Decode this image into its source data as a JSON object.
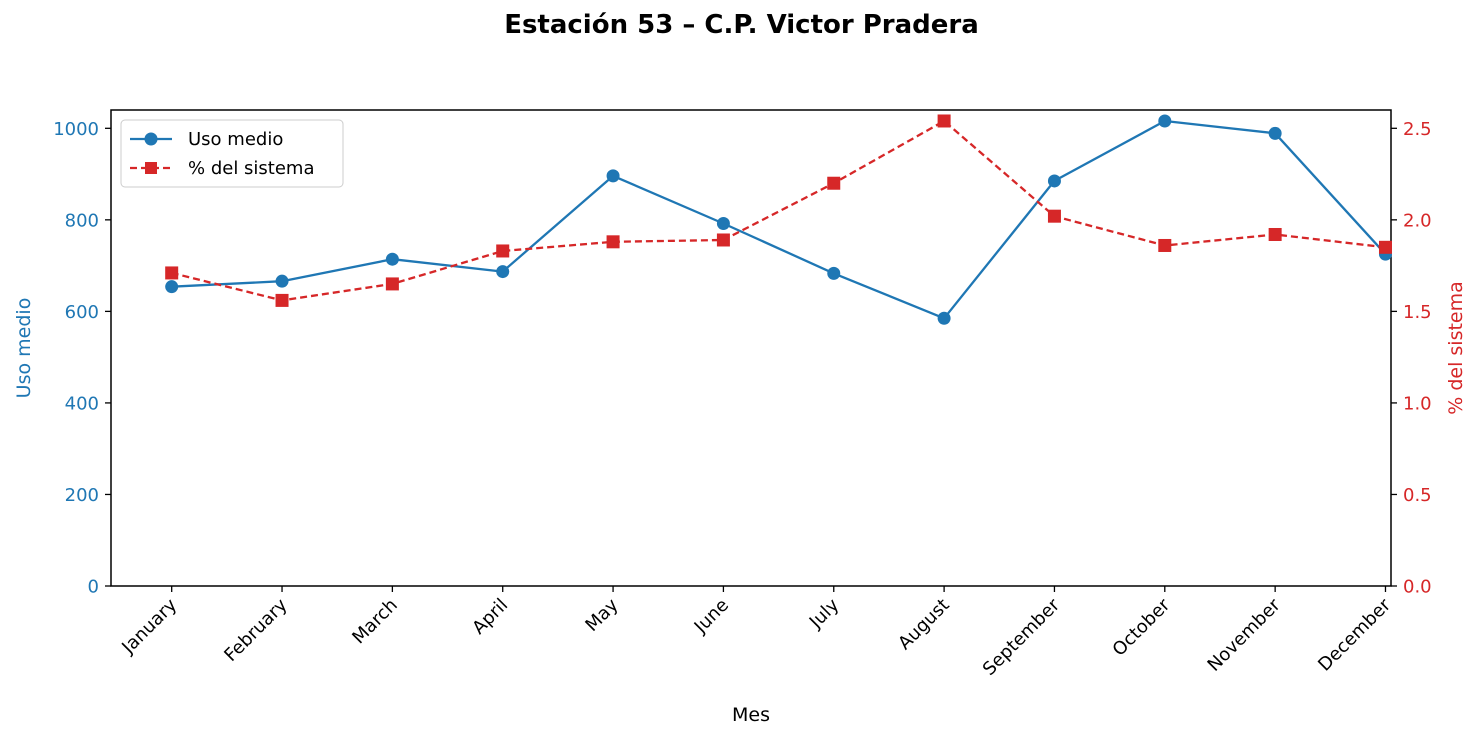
{
  "chart_data": {
    "type": "line",
    "title": "Estación 53 – C.P. Victor Pradera",
    "xlabel": "Mes",
    "categories": [
      "January",
      "February",
      "March",
      "April",
      "May",
      "June",
      "July",
      "August",
      "September",
      "October",
      "November",
      "December"
    ],
    "series": [
      {
        "name": "Uso medio",
        "axis": "left",
        "color": "#1f77b4",
        "marker": "circle",
        "linestyle": "solid",
        "values": [
          654,
          666,
          714,
          687,
          896,
          792,
          683,
          585,
          885,
          1016,
          989,
          725
        ]
      },
      {
        "name": "% del sistema",
        "axis": "right",
        "color": "#d62728",
        "marker": "square",
        "linestyle": "dashed",
        "values": [
          1.71,
          1.56,
          1.65,
          1.83,
          1.88,
          1.89,
          2.2,
          2.54,
          2.02,
          1.86,
          1.92,
          1.85
        ]
      }
    ],
    "y_left": {
      "label": "Uso medio",
      "ylim": [
        0,
        1040
      ],
      "ticks": [
        0,
        200,
        400,
        600,
        800,
        1000
      ],
      "tick_labels": [
        "0",
        "200",
        "400",
        "600",
        "800",
        "1000"
      ],
      "color": "#1f77b4"
    },
    "y_right": {
      "label": "% del sistema",
      "ylim": [
        0,
        2.6
      ],
      "ticks": [
        0,
        0.5,
        1.0,
        1.5,
        2.0,
        2.5
      ],
      "tick_labels": [
        "0.0",
        "0.5",
        "1.0",
        "1.5",
        "2.0",
        "2.5"
      ],
      "color": "#d62728"
    },
    "legend": {
      "position": "upper left",
      "entries": [
        "Uso medio",
        "% del sistema"
      ]
    },
    "grid": false
  }
}
